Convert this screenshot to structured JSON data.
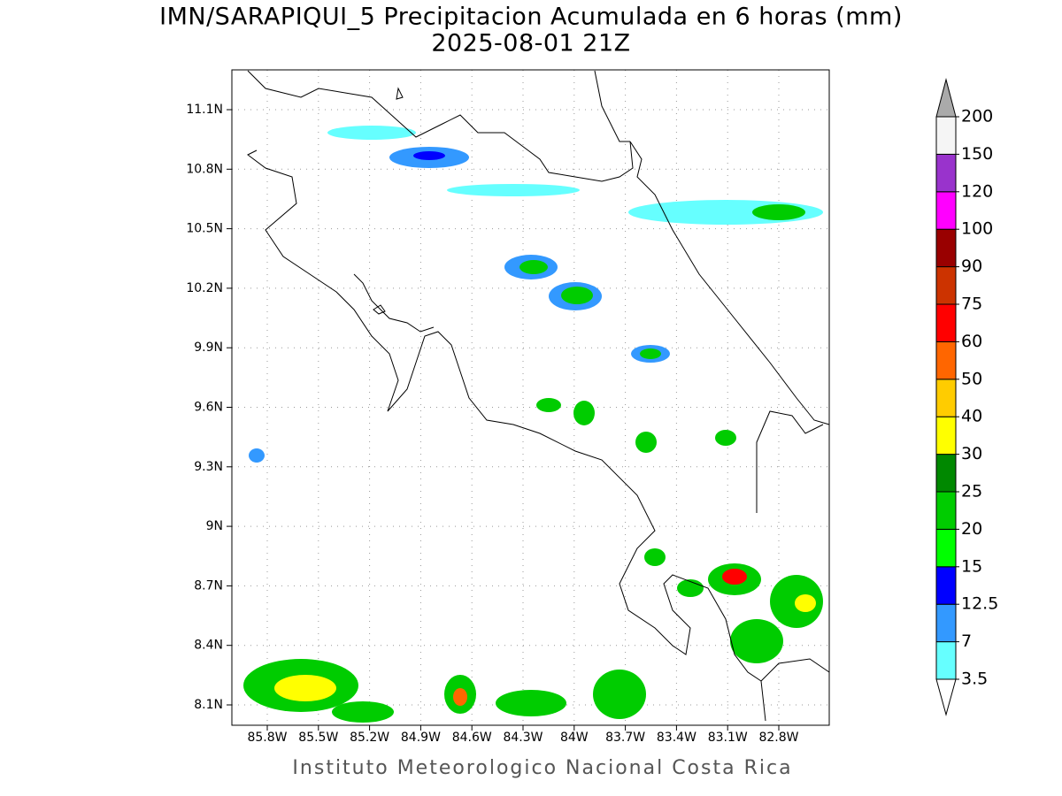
{
  "title": "IMN/SARAPIQUI_5 Precipitacion Acumulada en 6 horas (mm)",
  "subtitle": "2025-08-01 21Z",
  "footer": "Instituto Meteorologico Nacional Costa Rica",
  "map": {
    "lat_labels": [
      "11.1N",
      "10.8N",
      "10.5N",
      "10.2N",
      "9.9N",
      "9.6N",
      "9.3N",
      "9N",
      "8.7N",
      "8.4N",
      "8.1N"
    ],
    "lon_labels": [
      "85.8W",
      "85.5W",
      "85.2W",
      "84.9W",
      "84.6W",
      "84.3W",
      "84W",
      "83.7W",
      "83.4W",
      "83.1W",
      "82.8W"
    ]
  },
  "colorbar": {
    "levels": [
      3.5,
      7,
      12.5,
      15,
      20,
      25,
      30,
      40,
      50,
      60,
      75,
      90,
      100,
      120,
      150,
      200
    ],
    "under_color": "#ffffff",
    "colors": [
      "#66ffff",
      "#3399ff",
      "#0000ff",
      "#00ff00",
      "#00cc00",
      "#008800",
      "#ffff00",
      "#ffcc00",
      "#ff6600",
      "#ff0000",
      "#cc3300",
      "#990000",
      "#ff00ff",
      "#9933cc",
      "#f5f5f5"
    ],
    "over_color": "#aaaaaa"
  }
}
